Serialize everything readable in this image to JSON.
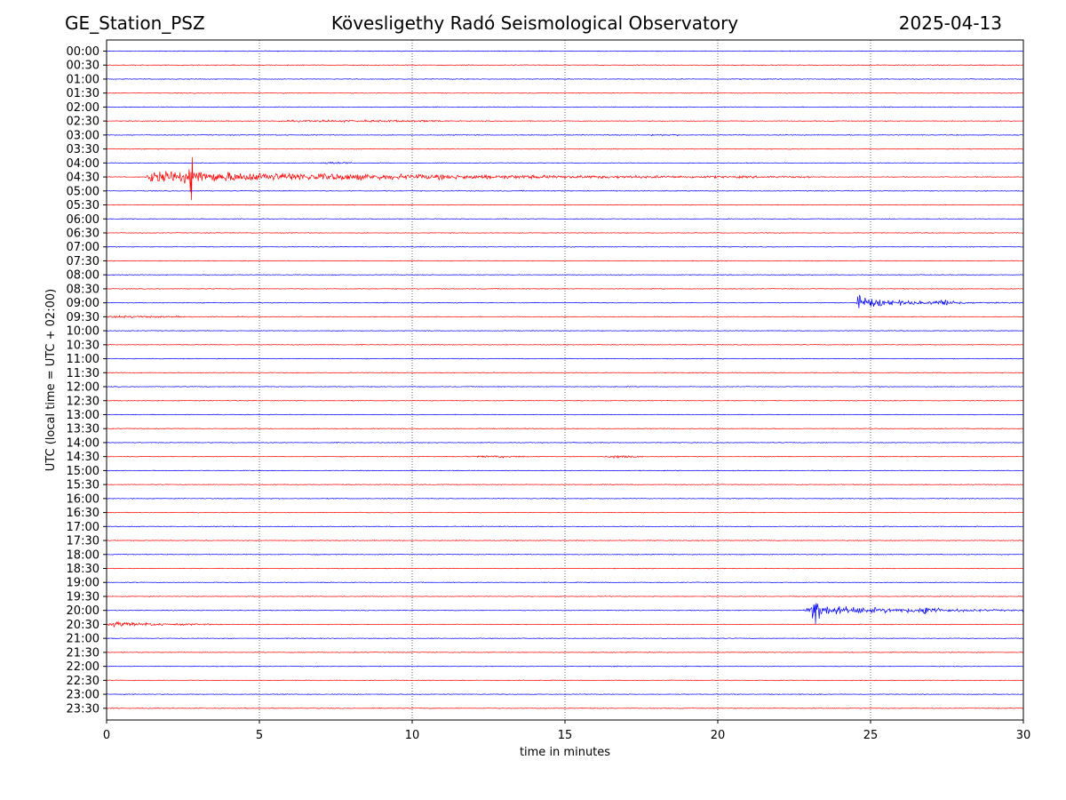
{
  "header": {
    "station": "GE_Station_PSZ",
    "title": "Kövesligethy Radó Seismological Observatory",
    "date": "2025-04-13"
  },
  "chart_data": {
    "type": "line",
    "title": "Kövesligethy Radó Seismological Observatory",
    "xlabel": "time in minutes",
    "ylabel": "UTC (local time = UTC + 02:00)",
    "xlim": [
      0,
      30
    ],
    "xticks": [
      0,
      5,
      10,
      15,
      20,
      25,
      30
    ],
    "vertical_gridlines": [
      5,
      10,
      15,
      20,
      25
    ],
    "grid": "vertical dotted",
    "row_labels": [
      "00:00",
      "00:30",
      "01:00",
      "01:30",
      "02:00",
      "02:30",
      "03:00",
      "03:30",
      "04:00",
      "04:30",
      "05:00",
      "05:30",
      "06:00",
      "06:30",
      "07:00",
      "07:30",
      "08:00",
      "08:30",
      "09:00",
      "09:30",
      "10:00",
      "10:30",
      "11:00",
      "11:30",
      "12:00",
      "12:30",
      "13:00",
      "13:30",
      "14:00",
      "14:30",
      "15:00",
      "15:30",
      "16:00",
      "16:30",
      "17:00",
      "17:30",
      "18:00",
      "18:30",
      "19:00",
      "19:30",
      "20:00",
      "20:30",
      "21:00",
      "21:30",
      "22:00",
      "22:30",
      "23:00",
      "23:30"
    ],
    "trace_colors": [
      "#0000ff",
      "#ff0000"
    ],
    "events": [
      {
        "row": "02:30",
        "start_min": 5.6,
        "end_min": 11.2,
        "amplitude_rows": 0.12,
        "decay": "flat"
      },
      {
        "row": "03:00",
        "start_min": 17.8,
        "end_min": 18.8,
        "amplitude_rows": 0.08,
        "decay": "flat"
      },
      {
        "row": "04:00",
        "start_min": 7.0,
        "end_min": 8.0,
        "amplitude_rows": 0.15,
        "decay": "flat"
      },
      {
        "row": "04:30",
        "start_min": 1.25,
        "end_min": 23.0,
        "amplitude_rows": 1.1,
        "peak_min": 1.5,
        "decay": "slow"
      },
      {
        "row": "04:30",
        "start_min": 2.6,
        "end_min": 3.6,
        "amplitude_rows": 3.2,
        "peak_min": 2.8,
        "decay": "fast"
      },
      {
        "row": "09:00",
        "start_min": 24.55,
        "end_min": 30.0,
        "amplitude_rows": 1.0,
        "peak_min": 24.6,
        "decay": "medium"
      },
      {
        "row": "09:00",
        "start_min": 24.55,
        "end_min": 24.75,
        "amplitude_rows": 2.6,
        "peak_min": 24.6,
        "decay": "fast"
      },
      {
        "row": "09:00",
        "start_min": 26.9,
        "end_min": 28.2,
        "amplitude_rows": 0.45,
        "peak_min": 27.4,
        "decay": "burst"
      },
      {
        "row": "09:30",
        "start_min": 0.0,
        "end_min": 5.5,
        "amplitude_rows": 0.22,
        "peak_min": 0.3,
        "decay": "medium"
      },
      {
        "row": "14:30",
        "start_min": 11.7,
        "end_min": 13.8,
        "amplitude_rows": 0.12,
        "decay": "flat"
      },
      {
        "row": "14:30",
        "start_min": 16.3,
        "end_min": 17.5,
        "amplitude_rows": 0.2,
        "decay": "flat"
      },
      {
        "row": "20:00",
        "start_min": 22.7,
        "end_min": 30.0,
        "amplitude_rows": 0.85,
        "peak_min": 23.2,
        "decay": "slow"
      },
      {
        "row": "20:00",
        "start_min": 23.05,
        "end_min": 23.35,
        "amplitude_rows": 4.6,
        "peak_min": 23.15,
        "decay": "fast"
      },
      {
        "row": "20:00",
        "start_min": 26.6,
        "end_min": 27.4,
        "amplitude_rows": 0.9,
        "peak_min": 26.85,
        "decay": "burst"
      },
      {
        "row": "20:30",
        "start_min": 0.0,
        "end_min": 5.8,
        "amplitude_rows": 0.45,
        "peak_min": 0.25,
        "decay": "medium"
      }
    ]
  }
}
